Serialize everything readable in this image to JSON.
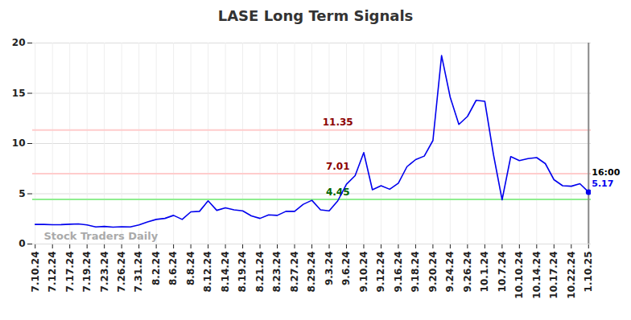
{
  "chart_data": {
    "type": "line",
    "title": "LASE Long Term Signals",
    "categories": [
      "7.10.24",
      null,
      "7.12.24",
      null,
      "7.17.24",
      null,
      "7.19.24",
      null,
      "7.23.24",
      null,
      "7.26.24",
      null,
      "7.31.24",
      null,
      "8.2.24",
      null,
      "8.6.24",
      null,
      "8.8.24",
      null,
      "8.12.24",
      null,
      "8.14.24",
      null,
      "8.19.24",
      null,
      "8.21.24",
      null,
      "8.23.24",
      null,
      "8.27.24",
      null,
      "8.29.24",
      null,
      "9.3.24",
      null,
      "9.6.24",
      null,
      "9.10.24",
      null,
      "9.12.24",
      null,
      "9.16.24",
      null,
      "9.18.24",
      null,
      "9.20.24",
      null,
      "9.24.24",
      null,
      "9.26.24",
      null,
      "10.1.24",
      null,
      "10.7.24",
      null,
      "10.10.24",
      null,
      "10.14.24",
      null,
      "10.17.24",
      null,
      "10.22.24",
      null,
      "1.10.25"
    ],
    "values": [
      1.95,
      1.95,
      1.92,
      1.93,
      1.97,
      2.0,
      1.9,
      1.7,
      1.75,
      1.68,
      1.72,
      1.7,
      1.9,
      2.2,
      2.45,
      2.55,
      2.85,
      2.45,
      3.2,
      3.25,
      4.3,
      3.35,
      3.6,
      3.4,
      3.3,
      2.8,
      2.55,
      2.9,
      2.85,
      3.25,
      3.25,
      3.95,
      4.35,
      3.4,
      3.3,
      4.3,
      5.95,
      6.8,
      9.1,
      5.4,
      5.8,
      5.45,
      6.05,
      7.7,
      8.4,
      8.75,
      10.3,
      18.75,
      14.6,
      11.9,
      12.7,
      14.3,
      14.2,
      8.9,
      4.4,
      8.7,
      8.3,
      8.5,
      8.6,
      8.0,
      6.4,
      5.8,
      5.75,
      6.0,
      5.17
    ],
    "color": "#0000ee",
    "ylim": [
      0,
      20
    ],
    "yticks": [
      0,
      5,
      10,
      15,
      20
    ],
    "grid": true,
    "reference_lines": [
      {
        "value": 11.35,
        "color": "#ffcccc"
      },
      {
        "value": 7.01,
        "color": "#ffcccc"
      },
      {
        "value": 4.45,
        "color": "#90ee90"
      }
    ],
    "last_point_time": "16:00",
    "watermark": "Stock Traders Daily"
  }
}
